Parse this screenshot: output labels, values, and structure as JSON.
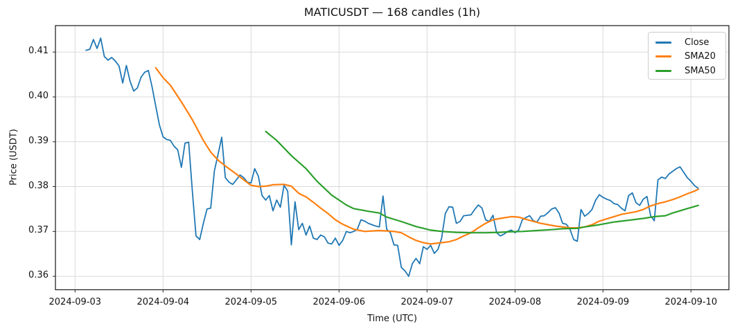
{
  "chart_data": {
    "type": "line",
    "title": "MATICUSDT — 168 candles (1h)",
    "xlabel": "Time (UTC)",
    "ylabel": "Price (USDT)",
    "grid": true,
    "legend": {
      "position": "upper right"
    },
    "xlim_hours": [
      -8.35,
      175.35
    ],
    "ylim": [
      0.357,
      0.4159
    ],
    "x_ticks": {
      "hours": [
        -3,
        21,
        45,
        69,
        93,
        117,
        141,
        165
      ],
      "labels": [
        "2024-09-03",
        "2024-09-04",
        "2024-09-05",
        "2024-09-06",
        "2024-09-07",
        "2024-09-08",
        "2024-09-09",
        "2024-09-10"
      ]
    },
    "y_ticks": {
      "values": [
        0.36,
        0.37,
        0.38,
        0.39,
        0.4,
        0.41
      ],
      "labels": [
        "0.36",
        "0.37",
        "0.38",
        "0.39",
        "0.40",
        "0.41"
      ]
    },
    "series": [
      {
        "name": "Close",
        "color": "#1f77b4",
        "line_width": 1.8,
        "x_start_hour": 0,
        "x_step_hours": 1,
        "values": [
          0.4104,
          0.4106,
          0.4128,
          0.4108,
          0.4131,
          0.409,
          0.4082,
          0.4088,
          0.408,
          0.4069,
          0.4031,
          0.407,
          0.4035,
          0.4013,
          0.402,
          0.4044,
          0.4055,
          0.4059,
          0.4023,
          0.398,
          0.3938,
          0.3911,
          0.3905,
          0.3903,
          0.389,
          0.3882,
          0.3843,
          0.3897,
          0.3899,
          0.379,
          0.369,
          0.3682,
          0.3718,
          0.375,
          0.3752,
          0.3835,
          0.3872,
          0.391,
          0.382,
          0.381,
          0.3805,
          0.3815,
          0.3826,
          0.382,
          0.381,
          0.3808,
          0.384,
          0.3823,
          0.378,
          0.377,
          0.378,
          0.3746,
          0.377,
          0.3754,
          0.3803,
          0.379,
          0.367,
          0.3766,
          0.3704,
          0.3718,
          0.3692,
          0.3712,
          0.3685,
          0.3682,
          0.3692,
          0.3688,
          0.3674,
          0.3672,
          0.3685,
          0.3669,
          0.368,
          0.37,
          0.3697,
          0.37,
          0.3705,
          0.3726,
          0.3723,
          0.3718,
          0.3715,
          0.3712,
          0.371,
          0.3779,
          0.3705,
          0.3697,
          0.367,
          0.3669,
          0.362,
          0.3612,
          0.36,
          0.3628,
          0.364,
          0.3628,
          0.3666,
          0.366,
          0.3669,
          0.3651,
          0.366,
          0.3685,
          0.374,
          0.3755,
          0.3754,
          0.3718,
          0.3722,
          0.3735,
          0.3736,
          0.3737,
          0.3749,
          0.3759,
          0.3752,
          0.3726,
          0.3722,
          0.3736,
          0.3697,
          0.369,
          0.3694,
          0.37,
          0.3703,
          0.3697,
          0.3703,
          0.3726,
          0.3731,
          0.3735,
          0.3724,
          0.3721,
          0.3734,
          0.3735,
          0.3742,
          0.375,
          0.3753,
          0.3741,
          0.3718,
          0.3716,
          0.3705,
          0.3682,
          0.3678,
          0.3749,
          0.3734,
          0.374,
          0.3749,
          0.377,
          0.3782,
          0.3776,
          0.3772,
          0.3769,
          0.3762,
          0.376,
          0.3752,
          0.3746,
          0.378,
          0.3786,
          0.3764,
          0.3758,
          0.3772,
          0.3778,
          0.3735,
          0.3724,
          0.3815,
          0.3821,
          0.3818,
          0.3828,
          0.3834,
          0.384,
          0.3844,
          0.3832,
          0.382,
          0.3812,
          0.3802,
          0.3796
        ]
      },
      {
        "name": "SMA20",
        "color": "#ff7f0e",
        "line_width": 2.2,
        "points": [
          [
            19,
            0.4065
          ],
          [
            21,
            0.4043
          ],
          [
            23,
            0.4026
          ],
          [
            26,
            0.3989
          ],
          [
            29,
            0.3949
          ],
          [
            32,
            0.3903
          ],
          [
            34,
            0.3877
          ],
          [
            36,
            0.3859
          ],
          [
            38,
            0.3846
          ],
          [
            41,
            0.3828
          ],
          [
            43,
            0.3815
          ],
          [
            45,
            0.3803
          ],
          [
            47,
            0.38
          ],
          [
            49,
            0.3801
          ],
          [
            51,
            0.3804
          ],
          [
            54,
            0.3805
          ],
          [
            56,
            0.3801
          ],
          [
            58,
            0.3785
          ],
          [
            60,
            0.3777
          ],
          [
            62,
            0.3765
          ],
          [
            64,
            0.3752
          ],
          [
            66,
            0.374
          ],
          [
            68,
            0.3726
          ],
          [
            70,
            0.3716
          ],
          [
            73,
            0.3705
          ],
          [
            76,
            0.37
          ],
          [
            80,
            0.3702
          ],
          [
            84,
            0.37
          ],
          [
            86,
            0.3697
          ],
          [
            88,
            0.3688
          ],
          [
            90,
            0.368
          ],
          [
            92,
            0.3675
          ],
          [
            94,
            0.3672
          ],
          [
            97,
            0.3675
          ],
          [
            99,
            0.3677
          ],
          [
            101,
            0.3682
          ],
          [
            103,
            0.369
          ],
          [
            105,
            0.3697
          ],
          [
            107,
            0.3708
          ],
          [
            109,
            0.3718
          ],
          [
            111,
            0.3726
          ],
          [
            113,
            0.3729
          ],
          [
            116,
            0.3733
          ],
          [
            118,
            0.3732
          ],
          [
            120,
            0.3727
          ],
          [
            124,
            0.3718
          ],
          [
            128,
            0.3712
          ],
          [
            130,
            0.371
          ],
          [
            132,
            0.3708
          ],
          [
            134,
            0.3708
          ],
          [
            136,
            0.371
          ],
          [
            138,
            0.3715
          ],
          [
            140,
            0.3723
          ],
          [
            142,
            0.3728
          ],
          [
            144,
            0.3733
          ],
          [
            146,
            0.3738
          ],
          [
            148,
            0.3741
          ],
          [
            150,
            0.3744
          ],
          [
            152,
            0.3749
          ],
          [
            154,
            0.3757
          ],
          [
            156,
            0.3762
          ],
          [
            158,
            0.3766
          ],
          [
            160,
            0.3771
          ],
          [
            162,
            0.3777
          ],
          [
            164,
            0.3784
          ],
          [
            166,
            0.379
          ],
          [
            167,
            0.3794
          ]
        ]
      },
      {
        "name": "SMA50",
        "color": "#2ca02c",
        "line_width": 2.2,
        "points": [
          [
            49,
            0.3923
          ],
          [
            52,
            0.3903
          ],
          [
            56,
            0.3869
          ],
          [
            60,
            0.384
          ],
          [
            63,
            0.3812
          ],
          [
            67,
            0.3781
          ],
          [
            71,
            0.3759
          ],
          [
            73,
            0.3751
          ],
          [
            77,
            0.3745
          ],
          [
            80,
            0.3741
          ],
          [
            82,
            0.3732
          ],
          [
            86,
            0.3722
          ],
          [
            90,
            0.3711
          ],
          [
            94,
            0.3703
          ],
          [
            97,
            0.37
          ],
          [
            101,
            0.3698
          ],
          [
            105,
            0.3697
          ],
          [
            109,
            0.3697
          ],
          [
            113,
            0.3698
          ],
          [
            115,
            0.3699
          ],
          [
            119,
            0.37
          ],
          [
            123,
            0.3702
          ],
          [
            127,
            0.3704
          ],
          [
            130,
            0.3706
          ],
          [
            134,
            0.3707
          ],
          [
            136,
            0.371
          ],
          [
            140,
            0.3715
          ],
          [
            144,
            0.3721
          ],
          [
            148,
            0.3725
          ],
          [
            152,
            0.3729
          ],
          [
            155,
            0.3733
          ],
          [
            158,
            0.3735
          ],
          [
            160,
            0.3741
          ],
          [
            164,
            0.3751
          ],
          [
            167,
            0.3758
          ]
        ]
      }
    ]
  }
}
